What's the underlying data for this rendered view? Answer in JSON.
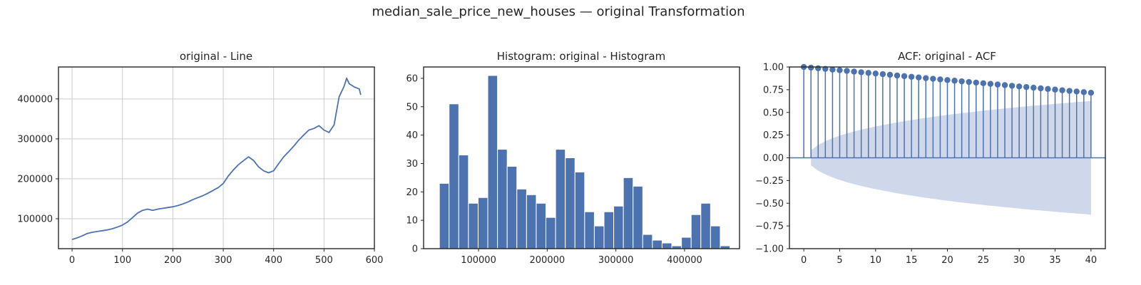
{
  "figure_title": "median_sale_price_new_houses — original Transformation",
  "colors": {
    "series": "#4c72b0",
    "confidence_band": "#cfd8ea",
    "grid": "#cccccc",
    "axis": "#262626"
  },
  "chart_data": [
    {
      "type": "line",
      "title": "original - Line",
      "xlabel": "",
      "ylabel": "",
      "xlim": [
        -27,
        600
      ],
      "ylim": [
        25000,
        480000
      ],
      "xticks": [
        0,
        100,
        200,
        300,
        400,
        500,
        600
      ],
      "xtick_labels": [
        "0",
        "100",
        "200",
        "300",
        "400",
        "500",
        "600"
      ],
      "yticks": [
        100000,
        200000,
        300000,
        400000
      ],
      "ytick_labels": [
        "100000",
        "200000",
        "300000",
        "400000"
      ],
      "grid": true,
      "series": [
        {
          "x": [
            0,
            10,
            20,
            30,
            40,
            50,
            60,
            70,
            80,
            90,
            100,
            110,
            120,
            130,
            140,
            150,
            160,
            170,
            180,
            190,
            200,
            210,
            220,
            230,
            240,
            250,
            260,
            270,
            280,
            290,
            300,
            310,
            320,
            330,
            340,
            350,
            360,
            370,
            380,
            390,
            400,
            410,
            420,
            430,
            440,
            450,
            460,
            470,
            480,
            490,
            500,
            510,
            520,
            530,
            540,
            545,
            550,
            560,
            570,
            573
          ],
          "y": [
            48000,
            52000,
            57000,
            63000,
            66000,
            68000,
            70000,
            72000,
            75000,
            79000,
            84000,
            92000,
            103000,
            114000,
            121000,
            124000,
            121000,
            124000,
            126000,
            128000,
            130000,
            133000,
            137000,
            142000,
            148000,
            153000,
            158000,
            164000,
            171000,
            178000,
            188000,
            207000,
            222000,
            235000,
            245000,
            255000,
            246000,
            230000,
            220000,
            215000,
            220000,
            238000,
            255000,
            268000,
            282000,
            297000,
            310000,
            322000,
            326000,
            333000,
            322000,
            316000,
            335000,
            405000,
            432000,
            452000,
            438000,
            430000,
            425000,
            410000
          ]
        }
      ]
    },
    {
      "type": "bar",
      "title": "Histogram: original - Histogram",
      "xlabel": "",
      "ylabel": "",
      "xlim": [
        20000,
        480000
      ],
      "ylim": [
        0,
        64
      ],
      "xticks": [
        100000,
        200000,
        300000,
        400000
      ],
      "xtick_labels": [
        "100000",
        "200000",
        "300000",
        "400000"
      ],
      "yticks": [
        0,
        10,
        20,
        30,
        40,
        50,
        60
      ],
      "ytick_labels": [
        "0",
        "10",
        "20",
        "30",
        "40",
        "50",
        "60"
      ],
      "grid": false,
      "bin_start": 43000,
      "bin_width": 14100,
      "counts": [
        23,
        51,
        33,
        16,
        18,
        61,
        35,
        29,
        21,
        19,
        16,
        11,
        35,
        32,
        27,
        13,
        8,
        13,
        15,
        25,
        22,
        5,
        3,
        2,
        1,
        4,
        12,
        16,
        8,
        1
      ]
    },
    {
      "type": "scatter",
      "subtype": "stem",
      "title": "ACF: original - ACF",
      "xlabel": "",
      "ylabel": "",
      "xlim": [
        -2,
        42
      ],
      "ylim": [
        -1.0,
        1.0
      ],
      "xticks": [
        0,
        5,
        10,
        15,
        20,
        25,
        30,
        35,
        40
      ],
      "xtick_labels": [
        "0",
        "5",
        "10",
        "15",
        "20",
        "25",
        "30",
        "35",
        "40"
      ],
      "yticks": [
        -1.0,
        -0.75,
        -0.5,
        -0.25,
        0.0,
        0.25,
        0.5,
        0.75,
        1.0
      ],
      "ytick_labels": [
        "−1.00",
        "−0.75",
        "−0.50",
        "−0.25",
        "0.00",
        "0.25",
        "0.50",
        "0.75",
        "1.00"
      ],
      "grid": false,
      "lags": [
        0,
        1,
        2,
        3,
        4,
        5,
        6,
        7,
        8,
        9,
        10,
        11,
        12,
        13,
        14,
        15,
        16,
        17,
        18,
        19,
        20,
        21,
        22,
        23,
        24,
        25,
        26,
        27,
        28,
        29,
        30,
        31,
        32,
        33,
        34,
        35,
        36,
        37,
        38,
        39,
        40
      ],
      "acf": [
        1.0,
        0.993,
        0.986,
        0.979,
        0.971,
        0.964,
        0.957,
        0.949,
        0.942,
        0.935,
        0.928,
        0.921,
        0.914,
        0.906,
        0.899,
        0.892,
        0.885,
        0.877,
        0.87,
        0.863,
        0.856,
        0.849,
        0.842,
        0.835,
        0.828,
        0.821,
        0.814,
        0.807,
        0.8,
        0.793,
        0.786,
        0.779,
        0.772,
        0.765,
        0.758,
        0.751,
        0.744,
        0.737,
        0.73,
        0.723,
        0.716
      ],
      "conf_upper": [
        0.0,
        0.082,
        0.142,
        0.183,
        0.216,
        0.244,
        0.268,
        0.29,
        0.31,
        0.328,
        0.345,
        0.361,
        0.376,
        0.39,
        0.403,
        0.416,
        0.428,
        0.44,
        0.451,
        0.462,
        0.472,
        0.482,
        0.492,
        0.501,
        0.51,
        0.519,
        0.527,
        0.535,
        0.543,
        0.551,
        0.559,
        0.566,
        0.573,
        0.58,
        0.587,
        0.594,
        0.6,
        0.607,
        0.613,
        0.619,
        0.625
      ]
    }
  ]
}
